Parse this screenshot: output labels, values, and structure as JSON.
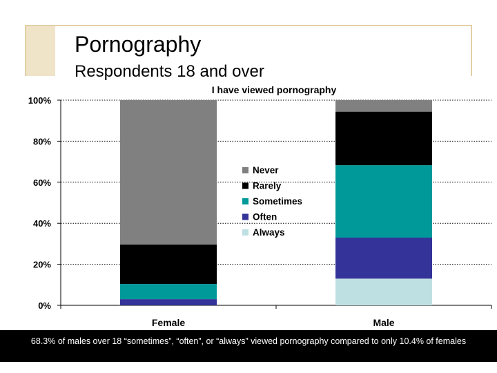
{
  "slide": {
    "title": "Pornography",
    "subtitle": "Respondents 18 and over"
  },
  "caption": "68.3% of males over 18 “sometimes”, “often”, or “always” viewed pornography compared to only 10.4% of females",
  "colors": {
    "Never": "#808080",
    "Rarely": "#000000",
    "Sometimes": "#009999",
    "Often": "#333399",
    "Always": "#bfe0e3"
  },
  "chart_data": {
    "type": "bar",
    "stacked": true,
    "title": "I have viewed pornography",
    "xlabel": "",
    "ylabel": "",
    "categories": [
      "Female",
      "Male"
    ],
    "ylim": [
      0,
      100
    ],
    "yticks": [
      0,
      20,
      40,
      60,
      80,
      100
    ],
    "ytick_labels": [
      "0%",
      "20%",
      "40%",
      "60%",
      "80%",
      "100%"
    ],
    "grid": true,
    "legend_position": "center",
    "legend_order": [
      "Never",
      "Rarely",
      "Sometimes",
      "Often",
      "Always"
    ],
    "series": [
      {
        "name": "Always",
        "values": [
          0,
          13
        ]
      },
      {
        "name": "Often",
        "values": [
          3,
          20
        ]
      },
      {
        "name": "Sometimes",
        "values": [
          7.4,
          35.3
        ]
      },
      {
        "name": "Rarely",
        "values": [
          19.2,
          26.1
        ]
      },
      {
        "name": "Never",
        "values": [
          70.4,
          5.6
        ]
      }
    ]
  }
}
